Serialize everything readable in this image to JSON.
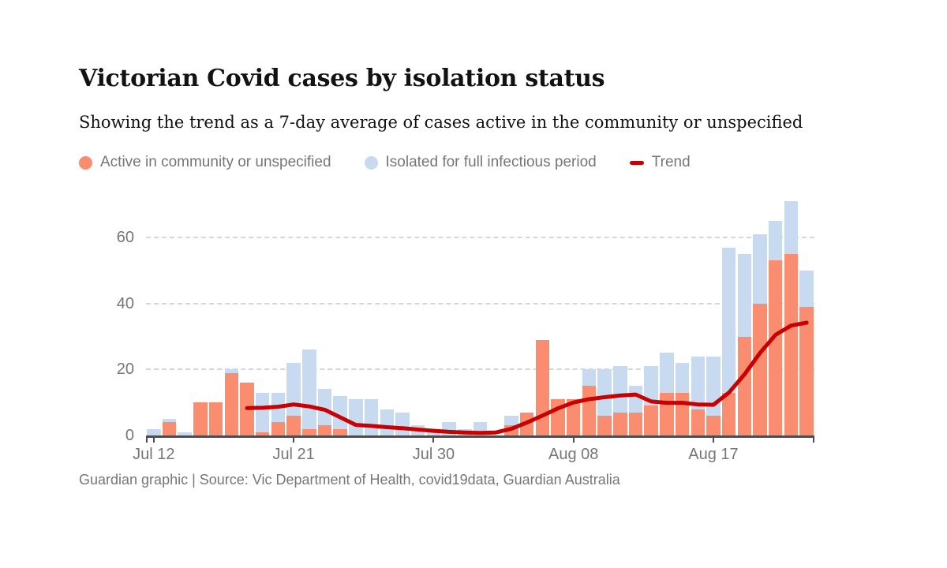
{
  "header": {
    "title": "Victorian Covid cases by isolation status",
    "subtitle": "Showing the trend as a 7-day average of cases active in the community or unspecified"
  },
  "legend": {
    "items": [
      {
        "label": "Active in community or unspecified",
        "marker": "dot",
        "color": "#fa8c70"
      },
      {
        "label": "Isolated for full infectious period",
        "marker": "dot",
        "color": "#c8daf0"
      },
      {
        "label": "Trend",
        "marker": "line",
        "color": "#c70000"
      }
    ]
  },
  "chart_data": {
    "type": "bar",
    "stacked": true,
    "title": "Victorian Covid cases by isolation status",
    "xlabel": "",
    "ylabel": "",
    "grid": "dashed-horizontal",
    "legend_position": "top",
    "y_ticks": [
      0,
      20,
      40,
      60
    ],
    "y_axis_max": 74.6,
    "categories": [
      "Jul 12",
      "Jul 13",
      "Jul 14",
      "Jul 15",
      "Jul 16",
      "Jul 17",
      "Jul 18",
      "Jul 19",
      "Jul 20",
      "Jul 21",
      "Jul 22",
      "Jul 23",
      "Jul 24",
      "Jul 25",
      "Jul 26",
      "Jul 27",
      "Jul 28",
      "Jul 29",
      "Jul 30",
      "Jul 31",
      "Aug 01",
      "Aug 02",
      "Aug 03",
      "Aug 04",
      "Aug 05",
      "Aug 06",
      "Aug 07",
      "Aug 08",
      "Aug 09",
      "Aug 10",
      "Aug 11",
      "Aug 12",
      "Aug 13",
      "Aug 14",
      "Aug 15",
      "Aug 16",
      "Aug 17",
      "Aug 18",
      "Aug 19",
      "Aug 20",
      "Aug 21",
      "Aug 22",
      "Aug 23"
    ],
    "series": [
      {
        "name": "Active in community or unspecified",
        "color": "#fa8c70",
        "values": [
          0,
          4,
          0,
          10,
          10,
          19,
          16,
          1,
          4,
          6,
          2,
          3,
          2,
          0,
          0,
          0,
          0,
          0,
          0,
          0,
          0,
          0,
          0,
          3,
          7,
          29,
          11,
          11,
          15,
          6,
          7,
          7,
          9,
          13,
          13,
          8,
          6,
          13,
          30,
          40,
          53,
          55,
          39
        ]
      },
      {
        "name": "Isolated for full infectious period",
        "color": "#c8daf0",
        "values": [
          2,
          1,
          1,
          0,
          0,
          1,
          0,
          12,
          9,
          16,
          24,
          11,
          10,
          11,
          11,
          8,
          7,
          3,
          2,
          4,
          2,
          4,
          0,
          3,
          0,
          0,
          0,
          0,
          5,
          14,
          14,
          8,
          12,
          12,
          9,
          16,
          18,
          44,
          25,
          21,
          12,
          16,
          11
        ]
      }
    ],
    "trend": {
      "name": "Trend",
      "color": "#c70000",
      "start_index": 6,
      "values": [
        8.3,
        8.4,
        8.7,
        9.4,
        8.8,
        7.8,
        5.5,
        3.2,
        2.9,
        2.5,
        2.2,
        1.8,
        1.4,
        1.1,
        0.9,
        0.8,
        0.9,
        2.0,
        3.9,
        6.0,
        8.2,
        10.0,
        11.0,
        11.6,
        12.1,
        12.4,
        10.3,
        9.9,
        9.9,
        9.4,
        9.3,
        13.0,
        18.5,
        25.0,
        30.5,
        33.3,
        34.2
      ]
    },
    "x_tick_labels": [
      {
        "label": "Jul 12",
        "index": 0
      },
      {
        "label": "Jul 21",
        "index": 9
      },
      {
        "label": "Jul 30",
        "index": 18
      },
      {
        "label": "Aug 08",
        "index": 27
      },
      {
        "label": "Aug 17",
        "index": 36
      }
    ]
  },
  "footer": {
    "text": "Guardian graphic | Source: Vic Department of Health, covid19data, Guardian Australia"
  }
}
